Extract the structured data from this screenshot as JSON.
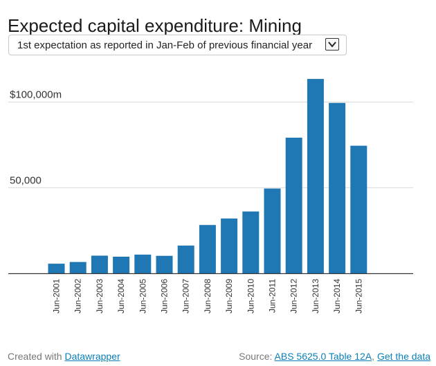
{
  "title": "Expected capital expenditure: Mining",
  "dropdown": {
    "selected": "1st expectation as reported in Jan-Feb of previous financial year",
    "icon": "chevron-down-icon"
  },
  "footer": {
    "created_with_prefix": "Created with",
    "created_with_link": "Datawrapper",
    "source_prefix": "Source:",
    "source_link": "ABS 5625.0 Table 12A",
    "separator": ",",
    "get_data_link": "Get the data"
  },
  "colors": {
    "bar": "#1f77b4",
    "grid": "#d9d9d9",
    "axis": "#333333",
    "link": "#0a7fb5"
  },
  "chart_data": {
    "type": "bar",
    "title": "",
    "xlabel": "",
    "ylabel": "",
    "ylim": [
      0,
      115000
    ],
    "y_ticks": [
      {
        "value": 100000,
        "label": "$100,000m"
      },
      {
        "value": 50000,
        "label": "50,000"
      }
    ],
    "grid": true,
    "categories": [
      "Jun-2001",
      "Jun-2002",
      "Jun-2003",
      "Jun-2004",
      "Jun-2005",
      "Jun-2006",
      "Jun-2007",
      "Jun-2008",
      "Jun-2009",
      "Jun-2010",
      "Jun-2011",
      "Jun-2012",
      "Jun-2013",
      "Jun-2014",
      "Jun-2015"
    ],
    "values": [
      5600,
      6600,
      10300,
      9700,
      10900,
      10200,
      16200,
      28200,
      32000,
      36100,
      49500,
      79200,
      113500,
      99500,
      74500
    ]
  }
}
